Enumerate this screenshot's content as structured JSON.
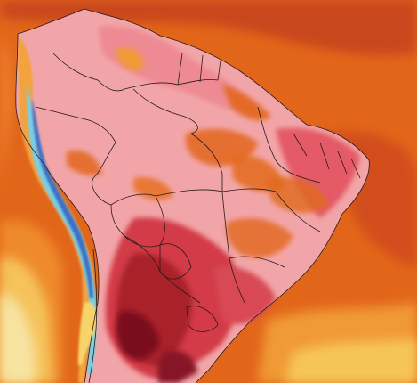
{
  "map": {
    "region": "South America",
    "type": "temperature-anomaly-heatmap",
    "colors": {
      "ocean_warm": "#e2661a",
      "ocean_hot": "#c9461c",
      "pale_pink": "#f6b3b4",
      "pink": "#ee8790",
      "red": "#d9454f",
      "deep_red": "#b3262f",
      "dark_maroon": "#7a0f1c",
      "orange": "#ef7a2a",
      "light_orange": "#f6a73b",
      "yellow": "#f5cf63",
      "pale_yellow": "#f7e7a4",
      "cyan": "#7fd3e8",
      "blue": "#4a7fd0",
      "border": "#2b1a1a"
    }
  }
}
